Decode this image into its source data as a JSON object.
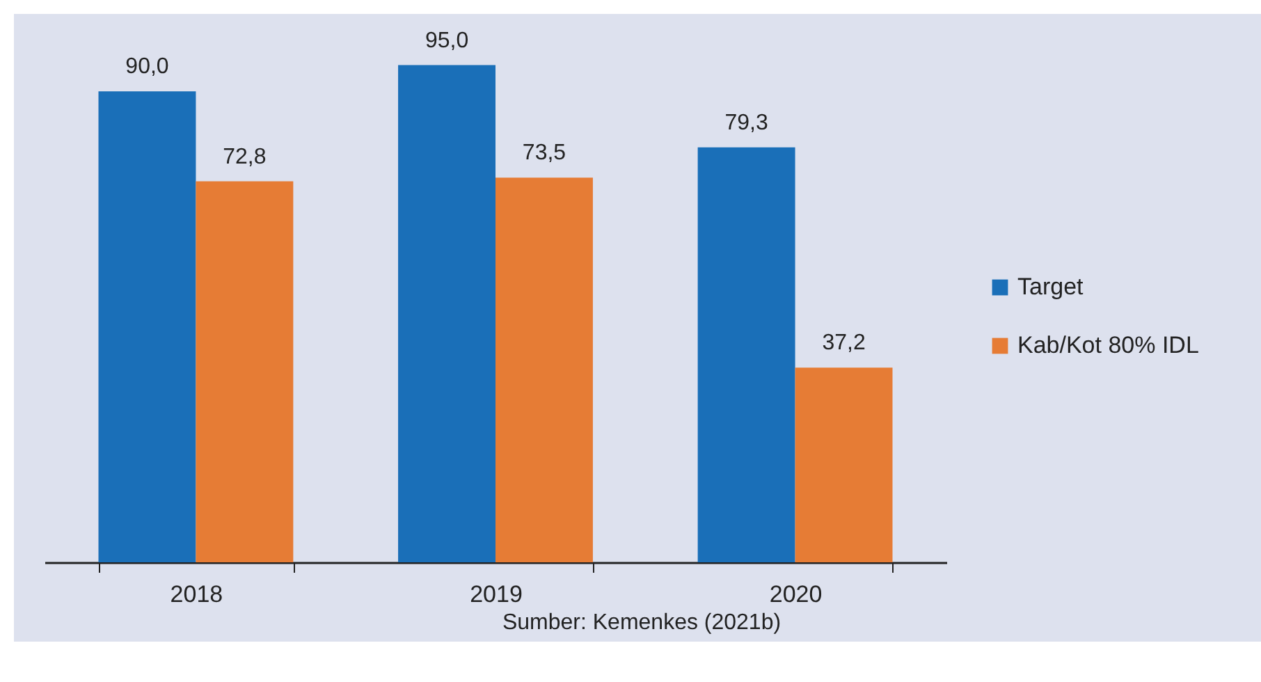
{
  "chart_data": {
    "type": "bar",
    "categories": [
      "2018",
      "2019",
      "2020"
    ],
    "series": [
      {
        "name": "Target",
        "color": "#1a6fb8",
        "values": [
          90.0,
          95.0,
          79.3
        ],
        "value_labels": [
          "90,0",
          "95,0",
          "79,3"
        ]
      },
      {
        "name": "Kab/Kot 80% IDL",
        "color": "#e67c35",
        "values": [
          72.8,
          73.5,
          37.2
        ],
        "value_labels": [
          "72,8",
          "73,5",
          "37,2"
        ]
      }
    ],
    "legend": "right",
    "annotations": [
      "Sumber: Kemenkes (2021b)"
    ]
  }
}
